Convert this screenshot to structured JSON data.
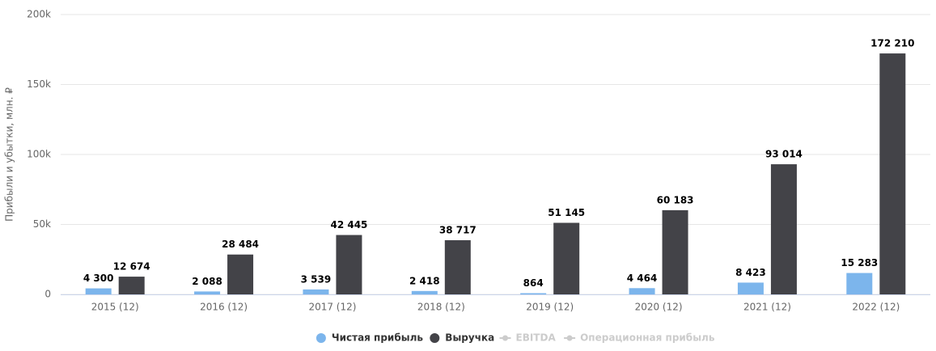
{
  "chart_data": {
    "type": "bar",
    "y_label": "Прибыли и убытки, млн. ₽",
    "categories": [
      "2015 (12)",
      "2016 (12)",
      "2017 (12)",
      "2018 (12)",
      "2019 (12)",
      "2020 (12)",
      "2021 (12)",
      "2022 (12)"
    ],
    "series": [
      {
        "name": "Чистая прибыль",
        "color": "#7cb5ec",
        "visible": true,
        "values": [
          4300,
          2088,
          3539,
          2418,
          864,
          4464,
          8423,
          15283
        ],
        "value_labels": [
          "4 300",
          "2 088",
          "3 539",
          "2 418",
          "864",
          "4 464",
          "8 423",
          "15 283"
        ]
      },
      {
        "name": "Выручка",
        "color": "#434348",
        "visible": true,
        "values": [
          12674,
          28484,
          42445,
          38717,
          51145,
          60183,
          93014,
          172210
        ],
        "value_labels": [
          "12 674",
          "28 484",
          "42 445",
          "38 717",
          "51 145",
          "60 183",
          "93 014",
          "172 210"
        ]
      },
      {
        "name": "EBITDA",
        "color": "#cccccc",
        "visible": false,
        "marker": "line",
        "values": [
          null,
          null,
          null,
          null,
          null,
          null,
          null,
          null
        ]
      },
      {
        "name": "Операционная прибыль",
        "color": "#cccccc",
        "visible": false,
        "marker": "line",
        "values": [
          null,
          null,
          null,
          null,
          null,
          null,
          null,
          null
        ]
      }
    ],
    "ylim": [
      0,
      200000
    ],
    "yticks": [
      0,
      {
        "value": 50000,
        "label": "50k"
      },
      {
        "value": 100000,
        "label": "100k"
      },
      {
        "value": 150000,
        "label": "150k"
      },
      {
        "value": 200000,
        "label": "200k"
      }
    ],
    "grid": true,
    "legend": "bottom"
  }
}
